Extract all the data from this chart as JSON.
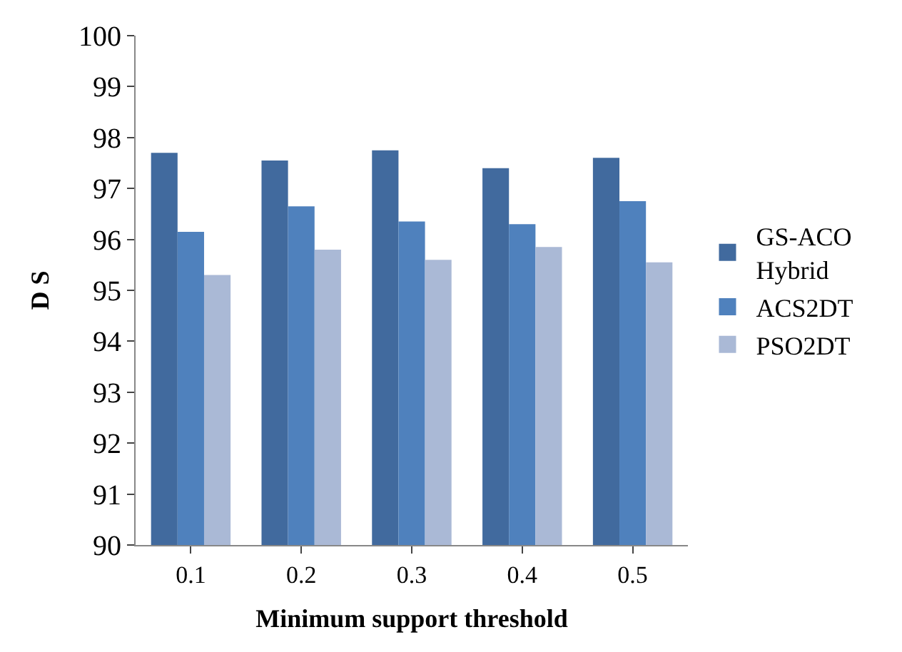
{
  "chart_data": {
    "type": "bar",
    "xlabel": "Minimum support threshold",
    "ylabel": "D S",
    "categories": [
      "0.1",
      "0.2",
      "0.3",
      "0.4",
      "0.5"
    ],
    "series": [
      {
        "name": "GS-ACO Hybrid",
        "color": "#416a9e",
        "values": [
          97.7,
          97.55,
          97.75,
          97.4,
          97.6
        ]
      },
      {
        "name": "ACS2DT",
        "color": "#4f81bd",
        "values": [
          96.15,
          96.65,
          96.35,
          96.3,
          96.75
        ]
      },
      {
        "name": "PSO2DT",
        "color": "#aab9d6",
        "values": [
          95.3,
          95.8,
          95.6,
          95.85,
          95.55
        ]
      }
    ],
    "ylim": [
      90,
      100
    ],
    "yticks": [
      90,
      91,
      92,
      93,
      94,
      95,
      96,
      97,
      98,
      99,
      100
    ],
    "grid": false,
    "legend": "right"
  }
}
